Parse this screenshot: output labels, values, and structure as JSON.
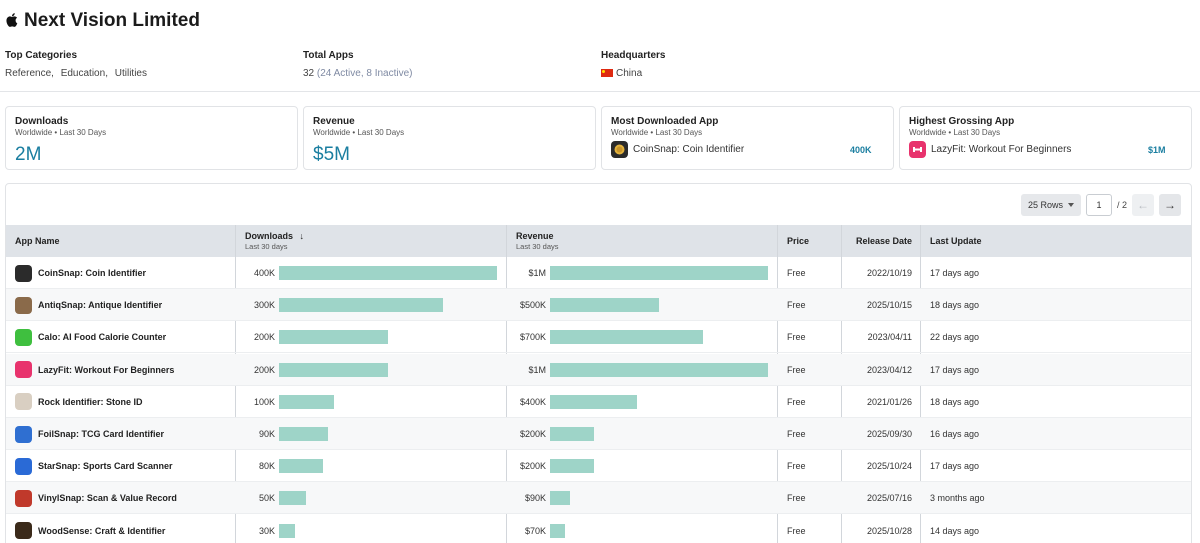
{
  "company": {
    "name": "Next Vision Limited",
    "logo_icon": "apple-icon"
  },
  "meta": {
    "top_categories_label": "Top Categories",
    "categories": [
      "Reference",
      "Education",
      "Utilities"
    ],
    "total_apps_label": "Total Apps",
    "total_apps_value": "32",
    "total_apps_detail": "(24 Active, 8 Inactive)",
    "hq_label": "Headquarters",
    "hq_value": "China"
  },
  "cards": {
    "downloads": {
      "title": "Downloads",
      "sub": "Worldwide • Last 30 Days",
      "value": "2M"
    },
    "revenue": {
      "title": "Revenue",
      "sub": "Worldwide • Last 30 Days",
      "value": "$5M"
    },
    "most_downloaded": {
      "title": "Most Downloaded App",
      "sub": "Worldwide • Last 30 Days",
      "app": "CoinSnap: Coin Identifier",
      "value": "400K"
    },
    "highest_grossing": {
      "title": "Highest Grossing App",
      "sub": "Worldwide • Last 30 Days",
      "app": "LazyFit: Workout For Beginners",
      "value": "$1M"
    }
  },
  "pager": {
    "rows_label": "25 Rows",
    "page": "1",
    "total": "/ 2",
    "prev_icon": "arrow-left-icon",
    "next_icon": "arrow-right-icon"
  },
  "table": {
    "headers": {
      "app_name": "App Name",
      "downloads": "Downloads",
      "downloads_sub": "Last 30 days",
      "revenue": "Revenue",
      "revenue_sub": "Last 30 days",
      "price": "Price",
      "release_date": "Release Date",
      "last_update": "Last Update"
    },
    "sort_icon": "arrow-down-icon",
    "bar_color": "#9ed4c8",
    "rows": [
      {
        "name": "CoinSnap: Coin Identifier",
        "icon_color": "#2b2b2b",
        "icon": "coin-icon",
        "downloads": "400K",
        "dl_value": 400000,
        "revenue": "$1M",
        "rev_value": 1000000,
        "price": "Free",
        "release": "2022/10/19",
        "update": "17 days ago"
      },
      {
        "name": "AntiqSnap: Antique Identifier",
        "icon_color": "#8a6a4a",
        "icon": "antique-icon",
        "downloads": "300K",
        "dl_value": 300000,
        "revenue": "$500K",
        "rev_value": 500000,
        "price": "Free",
        "release": "2025/10/15",
        "update": "18 days ago"
      },
      {
        "name": "Calo: AI Food Calorie Counter",
        "icon_color": "#3fbf3f",
        "icon": "food-icon",
        "downloads": "200K",
        "dl_value": 200000,
        "revenue": "$700K",
        "rev_value": 700000,
        "price": "Free",
        "release": "2023/04/11",
        "update": "22 days ago"
      },
      {
        "name": "LazyFit: Workout For Beginners",
        "icon_color": "#e8336d",
        "icon": "fitness-icon",
        "downloads": "200K",
        "dl_value": 200000,
        "revenue": "$1M",
        "rev_value": 1000000,
        "price": "Free",
        "release": "2023/04/12",
        "update": "17 days ago"
      },
      {
        "name": "Rock Identifier: Stone ID",
        "icon_color": "#d9cfc2",
        "icon": "rock-icon",
        "downloads": "100K",
        "dl_value": 100000,
        "revenue": "$400K",
        "rev_value": 400000,
        "price": "Free",
        "release": "2021/01/26",
        "update": "18 days ago"
      },
      {
        "name": "FoilSnap: TCG Card Identifier",
        "icon_color": "#2f6fd1",
        "icon": "card-icon",
        "downloads": "90K",
        "dl_value": 90000,
        "revenue": "$200K",
        "rev_value": 200000,
        "price": "Free",
        "release": "2025/09/30",
        "update": "16 days ago"
      },
      {
        "name": "StarSnap: Sports Card Scanner",
        "icon_color": "#2a6ad6",
        "icon": "sports-card-icon",
        "downloads": "80K",
        "dl_value": 80000,
        "revenue": "$200K",
        "rev_value": 200000,
        "price": "Free",
        "release": "2025/10/24",
        "update": "17 days ago"
      },
      {
        "name": "VinylSnap: Scan & Value Record",
        "icon_color": "#c0392b",
        "icon": "vinyl-icon",
        "downloads": "50K",
        "dl_value": 50000,
        "revenue": "$90K",
        "rev_value": 90000,
        "price": "Free",
        "release": "2025/07/16",
        "update": "3 months ago"
      },
      {
        "name": "WoodSense: Craft & Identifier",
        "icon_color": "#3b2a1a",
        "icon": "wood-icon",
        "downloads": "30K",
        "dl_value": 30000,
        "revenue": "$70K",
        "rev_value": 70000,
        "price": "Free",
        "release": "2025/10/28",
        "update": "14 days ago"
      }
    ]
  }
}
